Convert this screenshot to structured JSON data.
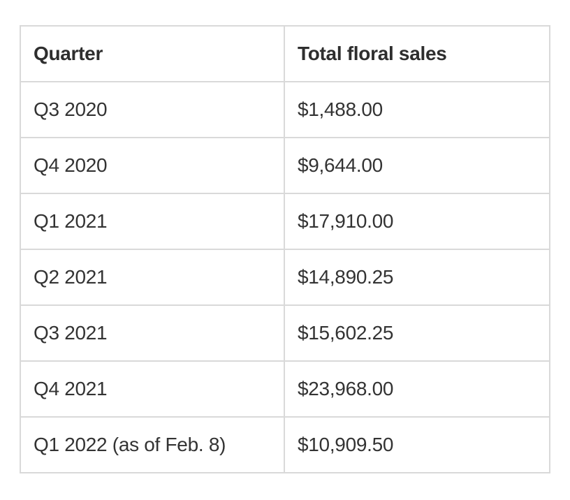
{
  "table": {
    "headers": [
      "Quarter",
      "Total floral sales"
    ],
    "rows": [
      [
        "Q3 2020",
        "$1,488.00"
      ],
      [
        "Q4 2020",
        "$9,644.00"
      ],
      [
        "Q1 2021",
        "$17,910.00"
      ],
      [
        "Q2 2021",
        "$14,890.25"
      ],
      [
        "Q3 2021",
        "$15,602.25"
      ],
      [
        "Q4 2021",
        "$23,968.00"
      ],
      [
        "Q1 2022 (as of Feb. 8)",
        "$10,909.50"
      ]
    ]
  },
  "colors": {
    "border": "#d9d9d9",
    "text": "#333333",
    "background": "#ffffff"
  }
}
